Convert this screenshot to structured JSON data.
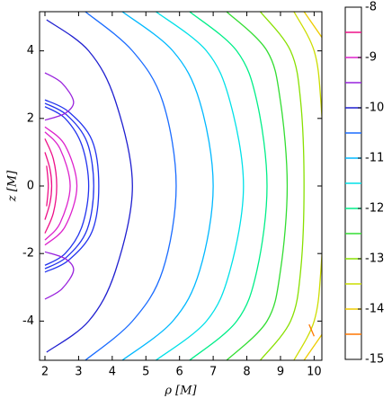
{
  "chart_data": {
    "type": "contour",
    "xlabel": "ρ [M]",
    "ylabel": "z [M]",
    "xlim": [
      1.84,
      10.23
    ],
    "ylim": [
      -5.16,
      5.16
    ],
    "xticks": [
      2,
      3,
      4,
      5,
      6,
      7,
      8,
      9,
      10
    ],
    "yticks": [
      -4,
      -2,
      0,
      2,
      4
    ],
    "series": [
      {
        "color": "#1f1fd0",
        "x": [
          2.05,
          3.3,
          4.1,
          4.6,
          4.1,
          3.3,
          2.05
        ],
        "y": [
          4.92,
          4,
          2.5,
          0,
          -2.5,
          -4,
          -4.92
        ]
      },
      {
        "color": "#1a6cff",
        "x": [
          3.2,
          4.6,
          5.5,
          5.9,
          5.5,
          4.6,
          3.2
        ],
        "y": [
          5.16,
          4,
          2.5,
          0,
          -2.5,
          -4,
          -5.16
        ]
      },
      {
        "color": "#00b8ff",
        "x": [
          4.3,
          5.8,
          6.6,
          7.0,
          6.6,
          5.8,
          4.3
        ],
        "y": [
          5.16,
          4,
          2.5,
          0,
          -2.5,
          -4,
          -5.16
        ]
      },
      {
        "color": "#00e0e8",
        "x": [
          5.3,
          6.8,
          7.5,
          7.9,
          7.5,
          6.8,
          5.3
        ],
        "y": [
          5.16,
          4,
          2.5,
          0,
          -2.5,
          -4,
          -5.16
        ]
      },
      {
        "color": "#00ee88",
        "x": [
          6.3,
          7.7,
          8.3,
          8.6,
          8.3,
          7.7,
          6.3
        ],
        "y": [
          5.16,
          4,
          2.5,
          0,
          -2.5,
          -4,
          -5.16
        ]
      },
      {
        "color": "#33dd33",
        "x": [
          7.4,
          8.6,
          9.0,
          9.2,
          9.0,
          8.6,
          7.4
        ],
        "y": [
          5.16,
          4,
          2.5,
          0,
          -2.5,
          -4,
          -5.16
        ]
      },
      {
        "color": "#88e000",
        "x": [
          8.4,
          9.3,
          9.6,
          9.7,
          9.6,
          9.3,
          8.4
        ],
        "y": [
          5.16,
          4,
          2.5,
          0,
          -2.5,
          -4,
          -5.16
        ]
      },
      {
        "color": "#ccdd00",
        "x": [
          9.4,
          10.0,
          10.2,
          10.3,
          10.2,
          10.0,
          9.4
        ],
        "y": [
          5.16,
          4,
          2.5,
          0,
          -2.5,
          -4,
          -5.16
        ]
      },
      {
        "color": "#eecc00",
        "x": [
          9.7,
          10.3,
          null,
          9.7,
          10.3
        ],
        "y": [
          5.16,
          4.3,
          null,
          -5.16,
          -4.3
        ]
      },
      {
        "color": "#ff7700",
        "x": [
          9.85,
          10.0
        ],
        "y": [
          -4.1,
          -4.45
        ]
      },
      {
        "color": "#2233ee",
        "x": [
          2.0,
          2.6,
          3.1,
          3.3,
          3.1,
          2.6,
          2.0
        ],
        "y": [
          2.35,
          2.0,
          1.2,
          0,
          -1.2,
          -2.0,
          -2.35
        ]
      },
      {
        "color": "#2233ee",
        "x": [
          2.0,
          2.65,
          3.25,
          3.45,
          3.25,
          2.65,
          2.0
        ],
        "y": [
          2.45,
          2.1,
          1.3,
          0,
          -1.3,
          -2.1,
          -2.45
        ]
      },
      {
        "color": "#2233ee",
        "x": [
          2.0,
          2.7,
          3.4,
          3.6,
          3.4,
          2.7,
          2.0
        ],
        "y": [
          2.55,
          2.2,
          1.35,
          0,
          -1.35,
          -2.2,
          -2.55
        ]
      },
      {
        "color": "#9922dd",
        "x": [
          2.0,
          2.5,
          2.85,
          2.6,
          2.0,
          null,
          2.0,
          2.5,
          2.85,
          2.6,
          2.0
        ],
        "y": [
          3.35,
          3.05,
          2.5,
          2.15,
          1.95,
          null,
          -3.35,
          -3.05,
          -2.5,
          -2.15,
          -1.95
        ]
      },
      {
        "color": "#dd22cc",
        "x": [
          2.0,
          2.6,
          2.95,
          2.6,
          2.0
        ],
        "y": [
          1.75,
          1.2,
          0,
          -1.2,
          -1.75
        ]
      },
      {
        "color": "#dd22cc",
        "x": [
          2.0,
          2.45,
          2.75,
          2.45,
          2.0
        ],
        "y": [
          1.6,
          1.1,
          0,
          -1.1,
          -1.6
        ]
      },
      {
        "color": "#ee1188",
        "x": [
          2.0,
          2.25,
          2.35,
          2.25,
          2.0
        ],
        "y": [
          1.4,
          0.8,
          0,
          -0.8,
          -1.4
        ]
      },
      {
        "color": "#ee1188",
        "x": [
          2.0,
          2.15,
          2.2,
          2.15,
          2.0
        ],
        "y": [
          1.0,
          0.5,
          0,
          -0.5,
          -1.0
        ]
      },
      {
        "color": "#ee1188",
        "x": [
          2.05,
          2.1,
          2.05
        ],
        "y": [
          0.6,
          0,
          -0.6
        ]
      }
    ],
    "colorbar": {
      "ylim": [
        -15,
        -8
      ],
      "yticks": [
        -8,
        -9,
        -10,
        -11,
        -12,
        -13,
        -14,
        -15
      ],
      "levels": [
        -14.5,
        -14,
        -13.5,
        -13,
        -12.5,
        -12,
        -11.5,
        -11,
        -10.5,
        -10,
        -9.5,
        -9,
        -8.5
      ],
      "colors": [
        "#ff7700",
        "#eecc00",
        "#ccdd00",
        "#88e000",
        "#33dd33",
        "#00ee88",
        "#00e0e8",
        "#00b8ff",
        "#1a6cff",
        "#1f1fd0",
        "#9922dd",
        "#dd22cc",
        "#ee1188"
      ]
    }
  }
}
